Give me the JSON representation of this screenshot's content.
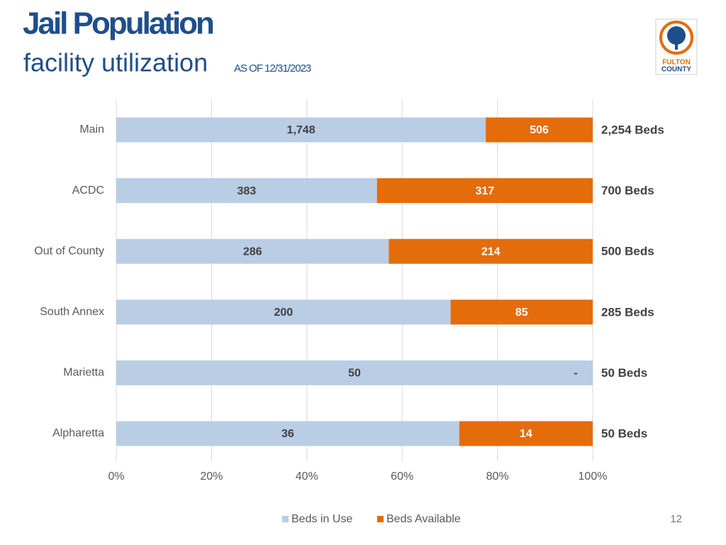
{
  "slide": {
    "title": "Jail Population",
    "subtitle": "facility utilization",
    "date_note": "AS OF 12/31/2023",
    "logo_text": [
      "FULTON",
      "COUNTY"
    ],
    "page_number": "12"
  },
  "chart_data": {
    "type": "bar",
    "orientation": "horizontal",
    "stacked": "percent",
    "categories": [
      "Main",
      "ACDC",
      "Out of County",
      "South Annex",
      "Marietta",
      "Alpharetta"
    ],
    "series": [
      {
        "name": "Beds in Use",
        "color": "#b9cde5",
        "values": [
          1748,
          383,
          286,
          200,
          50,
          36
        ],
        "value_labels": [
          "1,748",
          "383",
          "286",
          "200",
          "50",
          "36"
        ]
      },
      {
        "name": "Beds Available",
        "color": "#e46c0a",
        "values": [
          506,
          317,
          214,
          85,
          0,
          14
        ],
        "value_labels": [
          "506",
          "317",
          "214",
          "85",
          "-",
          "14"
        ]
      }
    ],
    "totals": [
      2254,
      700,
      500,
      285,
      50,
      50
    ],
    "total_labels": [
      "2,254 Beds",
      "700 Beds",
      "500 Beds",
      "285 Beds",
      "50 Beds",
      "50 Beds"
    ],
    "xlim": [
      0,
      100
    ],
    "xticks": [
      {
        "value": 0,
        "label": "0%"
      },
      {
        "value": 20,
        "label": "20%"
      },
      {
        "value": 40,
        "label": "40%"
      },
      {
        "value": 60,
        "label": "60%"
      },
      {
        "value": 80,
        "label": "80%"
      },
      {
        "value": 100,
        "label": "100%"
      }
    ],
    "grid": true,
    "legend": "bottom"
  }
}
